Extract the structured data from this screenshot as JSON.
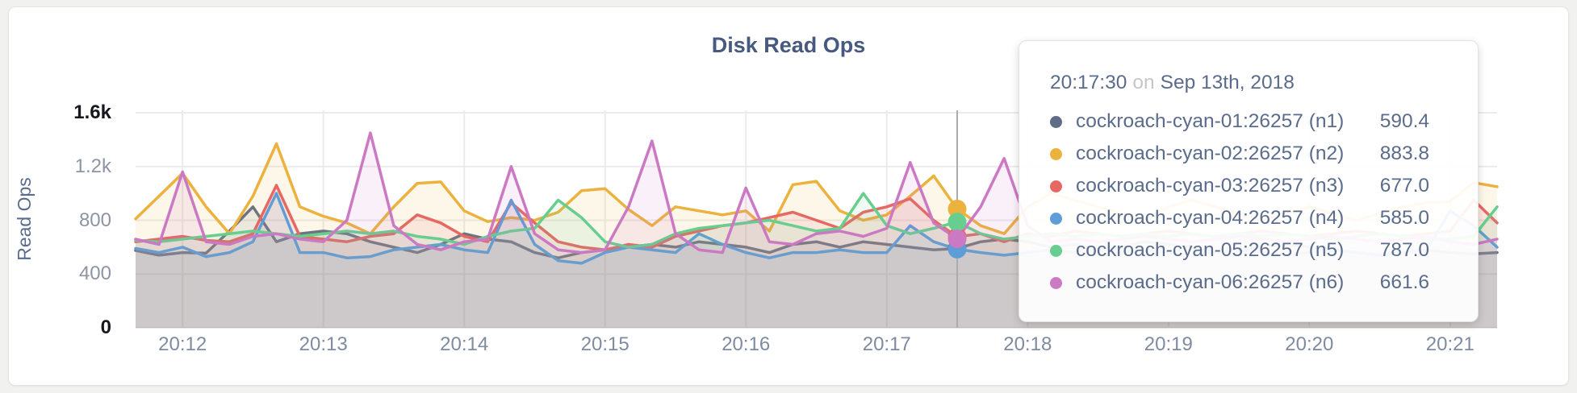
{
  "page": {
    "title": "Disk Read Ops"
  },
  "chart_data": {
    "type": "line",
    "title": "Disk Read Ops",
    "xlabel": "",
    "ylabel": "Read Ops",
    "ylim": [
      0,
      1600
    ],
    "grid": true,
    "legend_position": "tooltip-overlay",
    "x_start": "20:11:40",
    "x_step_seconds": 10,
    "x_ticks": [
      {
        "label": "20:12",
        "t": 20
      },
      {
        "label": "20:13",
        "t": 80
      },
      {
        "label": "20:14",
        "t": 140
      },
      {
        "label": "20:15",
        "t": 200
      },
      {
        "label": "20:16",
        "t": 260
      },
      {
        "label": "20:17",
        "t": 320
      },
      {
        "label": "20:18",
        "t": 380
      },
      {
        "label": "20:19",
        "t": 440
      },
      {
        "label": "20:20",
        "t": 500
      },
      {
        "label": "20:21",
        "t": 560
      }
    ],
    "y_ticks": [
      {
        "label": "0",
        "value": 0,
        "edge": true
      },
      {
        "label": "400",
        "value": 400
      },
      {
        "label": "800",
        "value": 800
      },
      {
        "label": "1.2k",
        "value": 1200
      },
      {
        "label": "1.6k",
        "value": 1600,
        "edge": true
      }
    ],
    "hover": {
      "index": 35,
      "time": "20:17:30"
    },
    "series": [
      {
        "name": "cockroach-cyan-01:26257 (n1)",
        "color": "#5f6c87",
        "values": [
          575,
          540,
          560,
          555,
          720,
          900,
          640,
          700,
          720,
          700,
          640,
          600,
          560,
          620,
          700,
          660,
          640,
          560,
          520,
          560,
          580,
          600,
          620,
          600,
          640,
          620,
          600,
          560,
          620,
          640,
          600,
          640,
          620,
          600,
          580,
          590.4,
          640,
          660,
          640,
          600,
          620,
          580,
          600,
          640,
          620,
          600,
          560,
          580,
          600,
          620,
          600,
          580,
          560,
          540,
          560,
          580,
          560,
          550,
          560
        ]
      },
      {
        "name": "cockroach-cyan-02:26257 (n2)",
        "color": "#ecb23e",
        "values": [
          810,
          980,
          1150,
          900,
          700,
          980,
          1370,
          900,
          830,
          780,
          700,
          900,
          1075,
          1085,
          870,
          790,
          820,
          800,
          860,
          1020,
          1035,
          880,
          760,
          900,
          870,
          840,
          870,
          720,
          1065,
          1090,
          870,
          800,
          840,
          980,
          1130,
          883.8,
          760,
          700,
          900,
          1000,
          950,
          900,
          850,
          800,
          900,
          950,
          900,
          850,
          800,
          850,
          900,
          850,
          800,
          850,
          900,
          930,
          940,
          1080,
          1050
        ]
      },
      {
        "name": "cockroach-cyan-03:26257 (n3)",
        "color": "#e66863",
        "values": [
          640,
          660,
          680,
          650,
          640,
          700,
          1060,
          680,
          660,
          640,
          680,
          700,
          840,
          780,
          680,
          640,
          930,
          780,
          640,
          600,
          580,
          620,
          600,
          680,
          720,
          760,
          780,
          820,
          860,
          800,
          740,
          860,
          900,
          960,
          800,
          677.0,
          700,
          640,
          700,
          680,
          720,
          700,
          680,
          700,
          720,
          700,
          680,
          700,
          720,
          700,
          680,
          700,
          720,
          700,
          680,
          700,
          720,
          950,
          780
        ]
      },
      {
        "name": "cockroach-cyan-04:26257 (n4)",
        "color": "#5e9dd6",
        "values": [
          590,
          560,
          600,
          530,
          560,
          640,
          1000,
          560,
          560,
          520,
          530,
          580,
          600,
          620,
          580,
          560,
          950,
          620,
          500,
          480,
          560,
          600,
          580,
          560,
          700,
          620,
          560,
          520,
          560,
          560,
          580,
          560,
          560,
          760,
          640,
          585.0,
          560,
          540,
          560,
          580,
          560,
          540,
          560,
          580,
          560,
          540,
          560,
          580,
          560,
          540,
          560,
          580,
          560,
          540,
          560,
          580,
          870,
          760,
          600
        ]
      },
      {
        "name": "cockroach-cyan-05:26257 (n5)",
        "color": "#67ce8f",
        "values": [
          650,
          640,
          660,
          680,
          700,
          720,
          700,
          680,
          700,
          720,
          700,
          720,
          680,
          660,
          620,
          680,
          720,
          740,
          950,
          820,
          640,
          600,
          620,
          700,
          740,
          760,
          780,
          800,
          760,
          720,
          740,
          1000,
          760,
          700,
          740,
          787.0,
          700,
          660,
          680,
          700,
          680,
          700,
          680,
          700,
          680,
          700,
          680,
          700,
          680,
          700,
          680,
          660,
          680,
          700,
          680,
          660,
          660,
          680,
          900
        ]
      },
      {
        "name": "cockroach-cyan-06:26257 (n6)",
        "color": "#cc79c4",
        "values": [
          660,
          620,
          1160,
          640,
          620,
          680,
          700,
          660,
          640,
          800,
          1450,
          760,
          620,
          580,
          640,
          660,
          1200,
          700,
          580,
          560,
          580,
          900,
          1390,
          700,
          580,
          560,
          1040,
          640,
          620,
          700,
          720,
          680,
          740,
          1230,
          780,
          661.6,
          900,
          1260,
          760,
          640,
          660,
          640,
          660,
          680,
          660,
          640,
          660,
          680,
          660,
          640,
          660,
          680,
          660,
          640,
          660,
          680,
          640,
          620,
          660
        ]
      }
    ]
  },
  "tooltip": {
    "time": "20:17:30",
    "on_word": "on",
    "date": "Sep 13th, 2018",
    "rows": [
      {
        "label": "cockroach-cyan-01:26257 (n1)",
        "value": "590.4",
        "color": "#5f6c87"
      },
      {
        "label": "cockroach-cyan-02:26257 (n2)",
        "value": "883.8",
        "color": "#ecb23e"
      },
      {
        "label": "cockroach-cyan-03:26257 (n3)",
        "value": "677.0",
        "color": "#e66863"
      },
      {
        "label": "cockroach-cyan-04:26257 (n4)",
        "value": "585.0",
        "color": "#5e9dd6"
      },
      {
        "label": "cockroach-cyan-05:26257 (n5)",
        "value": "787.0",
        "color": "#67ce8f"
      },
      {
        "label": "cockroach-cyan-06:26257 (n6)",
        "value": "661.6",
        "color": "#cc79c4"
      }
    ]
  }
}
